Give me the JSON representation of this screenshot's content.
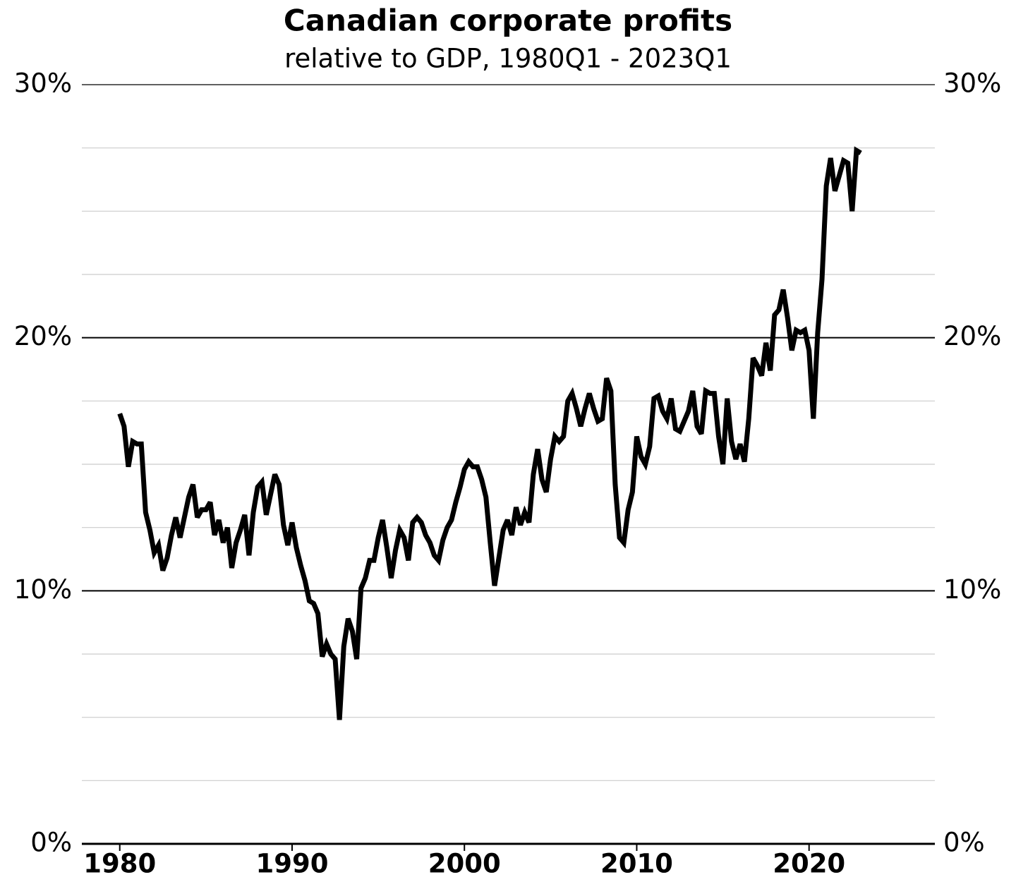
{
  "chart_data": {
    "type": "line",
    "title": "Canadian corporate profits",
    "subtitle": "relative to GDP, 1980Q1 - 2023Q1",
    "x": [
      1980,
      1980.25,
      1980.5,
      1980.75,
      1981,
      1981.25,
      1981.5,
      1981.75,
      1982,
      1982.25,
      1982.5,
      1982.75,
      1983,
      1983.25,
      1983.5,
      1983.75,
      1984,
      1984.25,
      1984.5,
      1984.75,
      1985,
      1985.25,
      1985.5,
      1985.75,
      1986,
      1986.25,
      1986.5,
      1986.75,
      1987,
      1987.25,
      1987.5,
      1987.75,
      1988,
      1988.25,
      1988.5,
      1988.75,
      1989,
      1989.25,
      1989.5,
      1989.75,
      1990,
      1990.25,
      1990.5,
      1990.75,
      1991,
      1991.25,
      1991.5,
      1991.75,
      1992,
      1992.25,
      1992.5,
      1992.75,
      1993,
      1993.25,
      1993.5,
      1993.75,
      1994,
      1994.25,
      1994.5,
      1994.75,
      1995,
      1995.25,
      1995.5,
      1995.75,
      1996,
      1996.25,
      1996.5,
      1996.75,
      1997,
      1997.25,
      1997.5,
      1997.75,
      1998,
      1998.25,
      1998.5,
      1998.75,
      1999,
      1999.25,
      1999.5,
      1999.75,
      2000,
      2000.25,
      2000.5,
      2000.75,
      2001,
      2001.25,
      2001.5,
      2001.75,
      2002,
      2002.25,
      2002.5,
      2002.75,
      2003,
      2003.25,
      2003.5,
      2003.75,
      2004,
      2004.25,
      2004.5,
      2004.75,
      2005,
      2005.25,
      2005.5,
      2005.75,
      2006,
      2006.25,
      2006.5,
      2006.75,
      2007,
      2007.25,
      2007.5,
      2007.75,
      2008,
      2008.25,
      2008.5,
      2008.75,
      2009,
      2009.25,
      2009.5,
      2009.75,
      2010,
      2010.25,
      2010.5,
      2010.75,
      2011,
      2011.25,
      2011.5,
      2011.75,
      2012,
      2012.25,
      2012.5,
      2012.75,
      2013,
      2013.25,
      2013.5,
      2013.75,
      2014,
      2014.25,
      2014.5,
      2014.75,
      2015,
      2015.25,
      2015.5,
      2015.75,
      2016,
      2016.25,
      2016.5,
      2016.75,
      2017,
      2017.25,
      2017.5,
      2017.75,
      2018,
      2018.25,
      2018.5,
      2018.75,
      2019,
      2019.25,
      2019.5,
      2019.75,
      2020,
      2020.25,
      2020.5,
      2020.75,
      2021,
      2021.25,
      2021.5,
      2021.75,
      2022,
      2022.25,
      2022.5,
      2022.75,
      2023
    ],
    "values": [
      17.0,
      16.5,
      14.9,
      15.9,
      15.8,
      15.8,
      13.1,
      12.4,
      11.5,
      11.8,
      10.8,
      11.3,
      12.2,
      12.9,
      12.1,
      12.9,
      13.7,
      14.2,
      12.9,
      13.2,
      13.2,
      13.5,
      12.2,
      12.8,
      11.9,
      12.5,
      10.9,
      11.9,
      12.4,
      13.0,
      11.4,
      13.1,
      14.1,
      14.3,
      13.0,
      13.8,
      14.6,
      14.2,
      12.6,
      11.8,
      12.7,
      11.7,
      11.0,
      10.4,
      9.6,
      9.5,
      9.1,
      7.4,
      7.9,
      7.5,
      7.3,
      4.9,
      7.8,
      8.9,
      8.4,
      7.3,
      10.1,
      10.5,
      11.2,
      11.2,
      12.1,
      12.8,
      11.7,
      10.5,
      11.6,
      12.4,
      12.1,
      11.2,
      12.7,
      12.9,
      12.7,
      12.2,
      11.9,
      11.4,
      11.2,
      12.0,
      12.5,
      12.8,
      13.5,
      14.1,
      14.8,
      15.1,
      14.9,
      14.9,
      14.4,
      13.7,
      11.9,
      10.2,
      11.3,
      12.4,
      12.8,
      12.2,
      13.3,
      12.6,
      13.1,
      12.7,
      14.6,
      15.6,
      14.4,
      13.9,
      15.2,
      16.1,
      15.9,
      16.1,
      17.5,
      17.8,
      17.2,
      16.5,
      17.2,
      17.8,
      17.2,
      16.7,
      16.8,
      18.4,
      17.9,
      14.2,
      12.1,
      11.9,
      13.2,
      13.9,
      16.1,
      15.3,
      15.0,
      15.7,
      17.6,
      17.7,
      17.1,
      16.8,
      17.6,
      16.4,
      16.3,
      16.7,
      17.1,
      17.9,
      16.5,
      16.2,
      17.9,
      17.8,
      17.8,
      16.1,
      15.0,
      17.6,
      15.9,
      15.2,
      15.8,
      15.1,
      16.8,
      19.2,
      18.9,
      18.5,
      19.8,
      18.7,
      20.9,
      21.1,
      21.9,
      20.8,
      19.5,
      20.3,
      20.2,
      20.3,
      19.5,
      16.8,
      20.2,
      22.3,
      26.0,
      27.1,
      25.8,
      26.4,
      27.0,
      26.9,
      25.0,
      27.4,
      27.3
    ],
    "color": "#000000",
    "xlim": [
      1977.8,
      2027.3
    ],
    "xticks": [
      1980,
      1990,
      2000,
      2010,
      2020
    ],
    "ylim": [
      0,
      30
    ],
    "yticks": [
      {
        "value": 0,
        "label": "0%"
      },
      {
        "value": 10,
        "label": "10%"
      },
      {
        "value": 20,
        "label": "20%"
      },
      {
        "value": 30,
        "label": "30%"
      }
    ],
    "y2lim": [
      0,
      30
    ],
    "y2ticks": [
      {
        "value": 0,
        "label": "0%"
      },
      {
        "value": 10,
        "label": "10%"
      },
      {
        "value": 20,
        "label": "20%"
      },
      {
        "value": 30,
        "label": "30%"
      }
    ],
    "yticks_minor": [
      2.5,
      5,
      7.5,
      12.5,
      15,
      17.5,
      22.5,
      25,
      27.5
    ],
    "grid": true
  }
}
